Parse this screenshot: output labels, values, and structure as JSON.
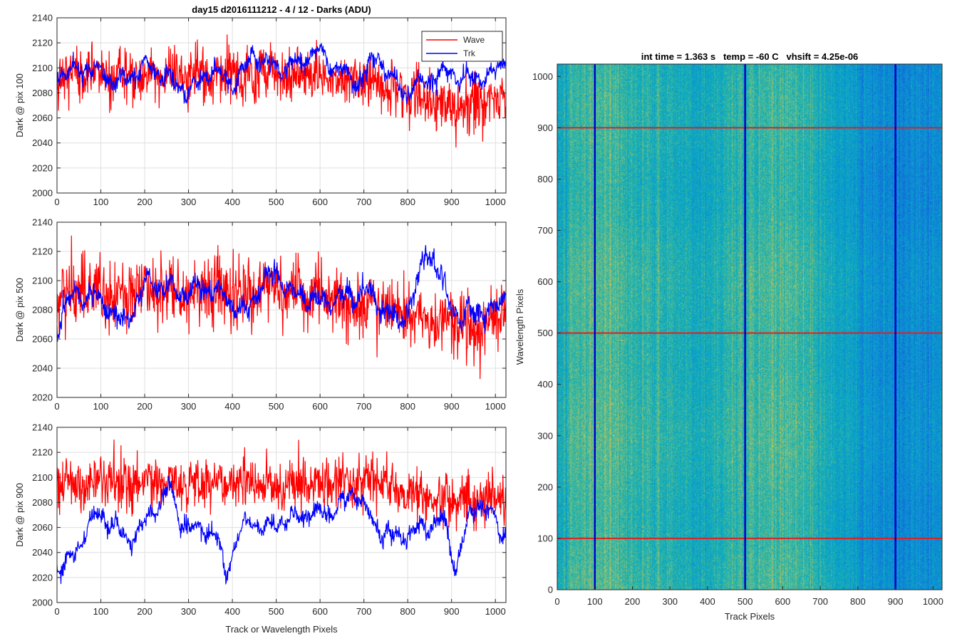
{
  "figure_title": "day15 d2016111212 - 4 / 12 - Darks (ADU)",
  "colors": {
    "wave": "#ff0000",
    "trk": "#0000ff",
    "axis": "#262626",
    "grid": "#dfdfdf"
  },
  "chart_data": [
    {
      "type": "line",
      "title": "day15 d2016111212 - 4 / 12 - Darks (ADU)",
      "xlabel": "",
      "ylabel": "Dark @ pix 100",
      "xlim": [
        0,
        1024
      ],
      "ylim": [
        2000,
        2140
      ],
      "xticks": [
        0,
        100,
        200,
        300,
        400,
        500,
        600,
        700,
        800,
        900,
        1000
      ],
      "yticks": [
        2000,
        2020,
        2040,
        2060,
        2080,
        2100,
        2120,
        2140
      ],
      "grid": true,
      "legend": {
        "position": "top-right",
        "entries": [
          "Wave",
          "Trk"
        ]
      },
      "series": [
        {
          "name": "Wave",
          "color": "#ff0000",
          "profile": [
            [
              0,
              2096
            ],
            [
              100,
              2095
            ],
            [
              200,
              2094
            ],
            [
              300,
              2094
            ],
            [
              400,
              2092
            ],
            [
              500,
              2095
            ],
            [
              600,
              2092
            ],
            [
              700,
              2089
            ],
            [
              750,
              2086
            ],
            [
              800,
              2078
            ],
            [
              850,
              2072
            ],
            [
              900,
              2068
            ],
            [
              950,
              2070
            ],
            [
              1024,
              2074
            ]
          ],
          "noise_sd": 11,
          "smooth_amplitude": 2
        },
        {
          "name": "Trk",
          "color": "#0000ff",
          "profile": [
            [
              0,
              2098
            ],
            [
              100,
              2096
            ],
            [
              150,
              2090
            ],
            [
              200,
              2100
            ],
            [
              250,
              2092
            ],
            [
              300,
              2082
            ],
            [
              350,
              2096
            ],
            [
              400,
              2088
            ],
            [
              450,
              2112
            ],
            [
              500,
              2096
            ],
            [
              550,
              2104
            ],
            [
              590,
              2116
            ],
            [
              620,
              2104
            ],
            [
              650,
              2096
            ],
            [
              680,
              2086
            ],
            [
              700,
              2094
            ],
            [
              730,
              2114
            ],
            [
              760,
              2092
            ],
            [
              800,
              2078
            ],
            [
              850,
              2094
            ],
            [
              900,
              2098
            ],
            [
              930,
              2088
            ],
            [
              960,
              2092
            ],
            [
              1000,
              2098
            ],
            [
              1024,
              2112
            ]
          ],
          "noise_sd": 3.5,
          "smooth_amplitude": 4
        }
      ]
    },
    {
      "type": "line",
      "title": "",
      "xlabel": "",
      "ylabel": "Dark @ pix 500",
      "xlim": [
        0,
        1024
      ],
      "ylim": [
        2020,
        2140
      ],
      "xticks": [
        0,
        100,
        200,
        300,
        400,
        500,
        600,
        700,
        800,
        900,
        1000
      ],
      "yticks": [
        2020,
        2040,
        2060,
        2080,
        2100,
        2120,
        2140
      ],
      "grid": true,
      "series": [
        {
          "name": "Wave",
          "color": "#ff0000",
          "profile": [
            [
              0,
              2092
            ],
            [
              200,
              2092
            ],
            [
              400,
              2093
            ],
            [
              500,
              2094
            ],
            [
              600,
              2090
            ],
            [
              700,
              2084
            ],
            [
              800,
              2078
            ],
            [
              900,
              2070
            ],
            [
              950,
              2068
            ],
            [
              1024,
              2080
            ]
          ],
          "noise_sd": 11,
          "smooth_amplitude": 2
        },
        {
          "name": "Trk",
          "color": "#0000ff",
          "profile": [
            [
              0,
              2070
            ],
            [
              40,
              2090
            ],
            [
              80,
              2092
            ],
            [
              120,
              2082
            ],
            [
              150,
              2068
            ],
            [
              180,
              2082
            ],
            [
              210,
              2102
            ],
            [
              250,
              2094
            ],
            [
              300,
              2090
            ],
            [
              350,
              2096
            ],
            [
              380,
              2092
            ],
            [
              430,
              2074
            ],
            [
              470,
              2100
            ],
            [
              500,
              2106
            ],
            [
              540,
              2092
            ],
            [
              600,
              2084
            ],
            [
              650,
              2090
            ],
            [
              700,
              2094
            ],
            [
              740,
              2080
            ],
            [
              780,
              2070
            ],
            [
              820,
              2096
            ],
            [
              840,
              2122
            ],
            [
              860,
              2112
            ],
            [
              890,
              2086
            ],
            [
              920,
              2074
            ],
            [
              960,
              2084
            ],
            [
              990,
              2074
            ],
            [
              1024,
              2092
            ]
          ],
          "noise_sd": 3.5,
          "smooth_amplitude": 4
        }
      ]
    },
    {
      "type": "line",
      "title": "",
      "xlabel": "Track or Wavelength Pixels",
      "ylabel": "Dark @ pix 900",
      "xlim": [
        0,
        1024
      ],
      "ylim": [
        2000,
        2140
      ],
      "xticks": [
        0,
        100,
        200,
        300,
        400,
        500,
        600,
        700,
        800,
        900,
        1000
      ],
      "yticks": [
        2000,
        2020,
        2040,
        2060,
        2080,
        2100,
        2120,
        2140
      ],
      "grid": true,
      "series": [
        {
          "name": "Wave",
          "color": "#ff0000",
          "profile": [
            [
              0,
              2096
            ],
            [
              200,
              2096
            ],
            [
              400,
              2094
            ],
            [
              600,
              2094
            ],
            [
              700,
              2096
            ],
            [
              800,
              2088
            ],
            [
              900,
              2082
            ],
            [
              1024,
              2082
            ]
          ],
          "noise_sd": 10,
          "smooth_amplitude": 2
        },
        {
          "name": "Trk",
          "color": "#0000ff",
          "profile": [
            [
              0,
              2030
            ],
            [
              40,
              2040
            ],
            [
              70,
              2060
            ],
            [
              100,
              2068
            ],
            [
              130,
              2062
            ],
            [
              160,
              2050
            ],
            [
              190,
              2062
            ],
            [
              230,
              2074
            ],
            [
              255,
              2092
            ],
            [
              280,
              2066
            ],
            [
              320,
              2060
            ],
            [
              360,
              2056
            ],
            [
              385,
              2018
            ],
            [
              410,
              2050
            ],
            [
              440,
              2068
            ],
            [
              480,
              2060
            ],
            [
              520,
              2064
            ],
            [
              560,
              2070
            ],
            [
              600,
              2074
            ],
            [
              640,
              2074
            ],
            [
              680,
              2088
            ],
            [
              720,
              2064
            ],
            [
              760,
              2054
            ],
            [
              800,
              2052
            ],
            [
              850,
              2062
            ],
            [
              880,
              2070
            ],
            [
              910,
              2030
            ],
            [
              930,
              2056
            ],
            [
              960,
              2080
            ],
            [
              990,
              2068
            ],
            [
              1024,
              2054
            ]
          ],
          "noise_sd": 3.5,
          "smooth_amplitude": 4
        }
      ]
    },
    {
      "type": "heatmap",
      "title": "int time = 1.363 s   temp = -60 C   vhsift = 4.25e-06",
      "xlabel": "Track Pixels",
      "ylabel": "Wavelength Pixels",
      "xlim": [
        0,
        1024
      ],
      "ylim": [
        0,
        1024
      ],
      "xticks": [
        0,
        100,
        200,
        300,
        400,
        500,
        600,
        700,
        800,
        900,
        1000
      ],
      "yticks": [
        0,
        100,
        200,
        300,
        400,
        500,
        600,
        700,
        800,
        900,
        1000
      ],
      "colormap": "parula",
      "column_levels": [
        [
          0,
          0.55
        ],
        [
          50,
          0.68
        ],
        [
          100,
          0.72
        ],
        [
          150,
          0.68
        ],
        [
          250,
          0.62
        ],
        [
          320,
          0.58
        ],
        [
          380,
          0.55
        ],
        [
          450,
          0.62
        ],
        [
          500,
          0.65
        ],
        [
          580,
          0.7
        ],
        [
          640,
          0.66
        ],
        [
          700,
          0.6
        ],
        [
          760,
          0.52
        ],
        [
          820,
          0.44
        ],
        [
          880,
          0.38
        ],
        [
          920,
          0.36
        ],
        [
          960,
          0.4
        ],
        [
          1024,
          0.42
        ]
      ],
      "row_levels": [
        [
          0,
          0.0
        ],
        [
          300,
          0.0
        ],
        [
          500,
          0.01
        ],
        [
          700,
          -0.02
        ],
        [
          900,
          -0.03
        ],
        [
          1024,
          -0.04
        ]
      ],
      "vertical_lines": {
        "x": [
          100,
          500,
          900
        ],
        "color": "#0000c8"
      },
      "horizontal_lines": {
        "y": [
          100,
          500,
          900
        ],
        "color": "#e02020"
      }
    }
  ]
}
